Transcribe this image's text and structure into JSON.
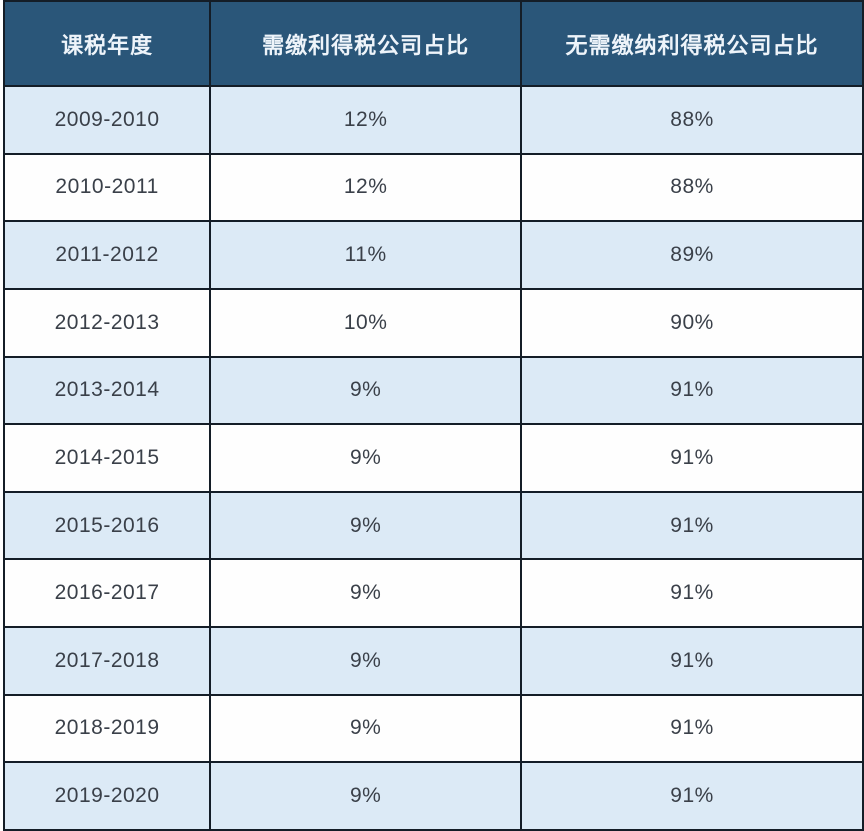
{
  "table": {
    "columns": [
      {
        "key": "year",
        "label": "课税年度"
      },
      {
        "key": "taxable",
        "label": "需缴利得税公司占比"
      },
      {
        "key": "non_taxable",
        "label": "无需缴纳利得税公司占比"
      }
    ],
    "rows": [
      {
        "year": "2009-2010",
        "taxable": "12%",
        "non_taxable": "88%"
      },
      {
        "year": "2010-2011",
        "taxable": "12%",
        "non_taxable": "88%"
      },
      {
        "year": "2011-2012",
        "taxable": "11%",
        "non_taxable": "89%"
      },
      {
        "year": "2012-2013",
        "taxable": "10%",
        "non_taxable": "90%"
      },
      {
        "year": "2013-2014",
        "taxable": "9%",
        "non_taxable": "91%"
      },
      {
        "year": "2014-2015",
        "taxable": "9%",
        "non_taxable": "91%"
      },
      {
        "year": "2015-2016",
        "taxable": "9%",
        "non_taxable": "91%"
      },
      {
        "year": "2016-2017",
        "taxable": "9%",
        "non_taxable": "91%"
      },
      {
        "year": "2017-2018",
        "taxable": "9%",
        "non_taxable": "91%"
      },
      {
        "year": "2018-2019",
        "taxable": "9%",
        "non_taxable": "91%"
      },
      {
        "year": "2019-2020",
        "taxable": "9%",
        "non_taxable": "91%"
      }
    ]
  },
  "colors": {
    "header_bg": "#2a5679",
    "header_text": "#eef4fa",
    "row_alt_bg": "#dceaf6",
    "row_bg": "#fefefe",
    "border": "#141d27",
    "cell_text": "#3a4049"
  },
  "chart_data": {
    "type": "table",
    "columns": [
      "课税年度",
      "需缴利得税公司占比",
      "无需缴纳利得税公司占比"
    ],
    "categories": [
      "2009-2010",
      "2010-2011",
      "2011-2012",
      "2012-2013",
      "2013-2014",
      "2014-2015",
      "2015-2016",
      "2016-2017",
      "2017-2018",
      "2018-2019",
      "2019-2020"
    ],
    "series": [
      {
        "name": "需缴利得税公司占比",
        "values": [
          12,
          12,
          11,
          10,
          9,
          9,
          9,
          9,
          9,
          9,
          9
        ],
        "unit": "%"
      },
      {
        "name": "无需缴纳利得税公司占比",
        "values": [
          88,
          88,
          89,
          90,
          91,
          91,
          91,
          91,
          91,
          91,
          91
        ],
        "unit": "%"
      }
    ],
    "layout": {
      "header_style": "dark-blue",
      "row_striping": "alternating light-blue / white",
      "grid": true
    }
  }
}
